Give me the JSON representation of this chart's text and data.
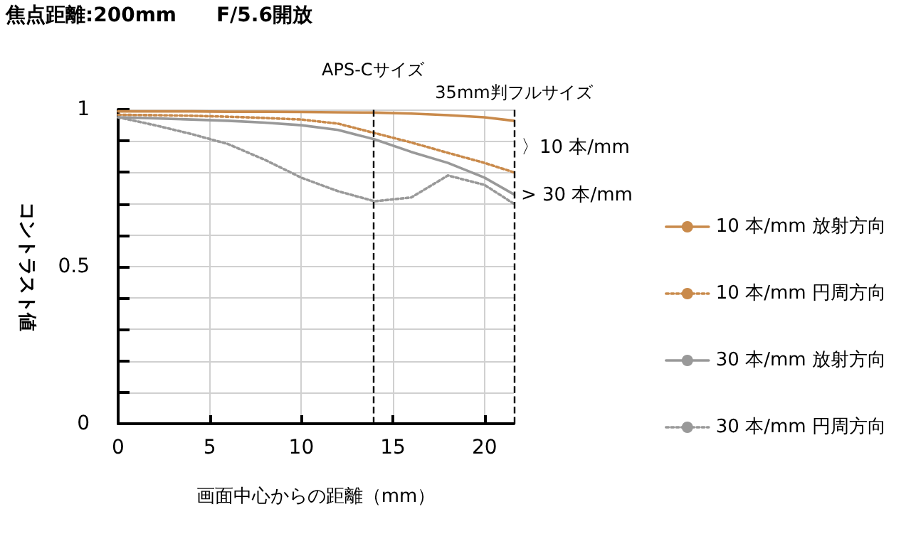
{
  "chart_data": {
    "type": "line",
    "title": "焦点距離:200mm　　F/5.6開放",
    "xlabel": "画面中心からの距離（mm）",
    "ylabel": "コントラスト値",
    "x": [
      0,
      2,
      4,
      6,
      8,
      10,
      12,
      14,
      16,
      18,
      20,
      21.6
    ],
    "series": [
      {
        "name": "10 本/mm 放射方向",
        "color": "#c98a4b",
        "line_style": "solid",
        "values": [
          0.994,
          0.994,
          0.994,
          0.993,
          0.993,
          0.992,
          0.991,
          0.99,
          0.987,
          0.982,
          0.975,
          0.964
        ]
      },
      {
        "name": "10 本/mm 円周方向",
        "color": "#c98a4b",
        "line_style": "dotted",
        "values": [
          0.983,
          0.982,
          0.98,
          0.977,
          0.973,
          0.968,
          0.955,
          0.925,
          0.895,
          0.862,
          0.83,
          0.8
        ]
      },
      {
        "name": "30 本/mm 放射方向",
        "color": "#999999",
        "line_style": "solid",
        "values": [
          0.975,
          0.972,
          0.968,
          0.964,
          0.958,
          0.95,
          0.935,
          0.905,
          0.865,
          0.83,
          0.783,
          0.73
        ]
      },
      {
        "name": "30 本/mm 円周方向",
        "color": "#999999",
        "line_style": "dotted",
        "values": [
          0.975,
          0.95,
          0.922,
          0.89,
          0.84,
          0.783,
          0.74,
          0.708,
          0.72,
          0.79,
          0.76,
          0.7
        ]
      }
    ],
    "xlim": [
      0,
      21.6
    ],
    "xticks": [
      0,
      5,
      10,
      15,
      20
    ],
    "ylim": [
      0,
      1
    ],
    "yticks": [
      0,
      {
        "value": 0.1,
        "label": null
      },
      {
        "value": 0.2,
        "label": null
      },
      {
        "value": 0.3,
        "label": null
      },
      {
        "value": 0.4,
        "label": null
      },
      0.5,
      {
        "value": 0.6,
        "label": null
      },
      {
        "value": 0.7,
        "label": null
      },
      {
        "value": 0.8,
        "label": null
      },
      {
        "value": 0.9,
        "label": null
      },
      1
    ],
    "ref_lines": [
      {
        "axis": "x",
        "value": 13.9,
        "label": "APS-Cサイズ",
        "color": "#000000",
        "line_style": "dashed"
      },
      {
        "axis": "x",
        "value": 21.6,
        "label": "35mm判フルサイズ",
        "color": "#000000",
        "line_style": "dashed"
      }
    ],
    "annotations": [
      "〉10 本/mm",
      "> 30 本/mm"
    ],
    "grid": true,
    "legend": "right",
    "marker": "none"
  }
}
